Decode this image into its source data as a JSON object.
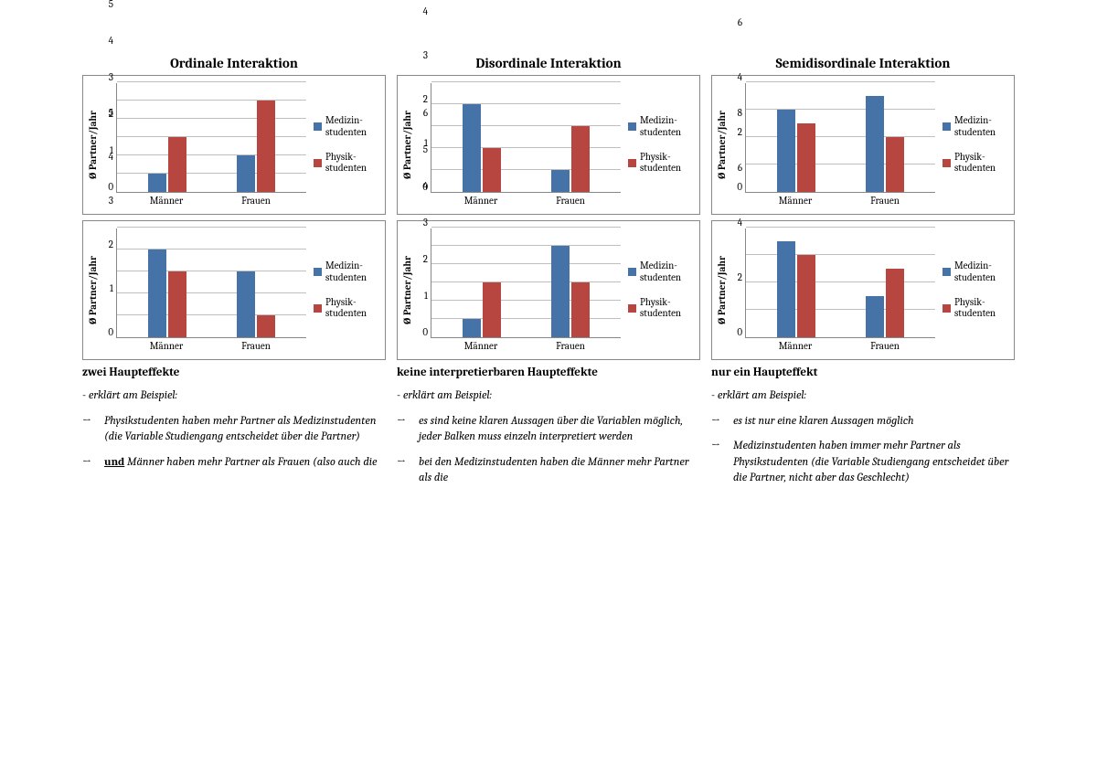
{
  "colors": {
    "series_a": "#4573a7",
    "series_b": "#b6463f",
    "grid": "#bfbfbf",
    "border": "#888888",
    "text": "#000000",
    "bg": "#ffffff"
  },
  "ylabel": "Ø Partner/Jahr",
  "categories": [
    "Männer",
    "Frauen"
  ],
  "legend": [
    {
      "label_l1": "Medizin-",
      "label_l2": "studenten",
      "color_key": "series_a"
    },
    {
      "label_l1": "Physik-",
      "label_l2": "studenten",
      "color_key": "series_b"
    }
  ],
  "columns": [
    {
      "title": "Ordinale Interaktion",
      "charts": [
        {
          "ymax": 6,
          "ystep": 1,
          "values": [
            [
              1,
              3
            ],
            [
              2,
              5
            ]
          ]
        },
        {
          "ymax": 5,
          "ystep": 1,
          "values": [
            [
              4,
              3
            ],
            [
              3,
              1
            ]
          ]
        }
      ],
      "subhead": "zwei Haupteffekte",
      "lead": "erklärt am Beispiel:",
      "points_html": [
        "Physikstudenten haben mehr Partner als Medizinstudenten (die Variable Studiengang entscheidet über die Partner)",
        "<span class=\"underline\">und</span> Männer haben mehr Partner als Frauen (also auch die"
      ]
    },
    {
      "title": "Disordinale Interaktion",
      "charts": [
        {
          "ymax": 5,
          "ystep": 1,
          "values": [
            [
              4,
              2
            ],
            [
              1,
              3
            ]
          ]
        },
        {
          "ymax": 6,
          "ystep": 1,
          "values": [
            [
              1,
              3
            ],
            [
              5,
              3
            ]
          ]
        }
      ],
      "subhead": "keine interpretierbaren Haupteffekte",
      "lead": "erklärt am Beispiel:",
      "points_html": [
        "es sind keine klaren Aussagen über die Variablen möglich, jeder Balken muss einzeln interpretiert werden",
        "bei den Medizinstudenten haben die Männer mehr Partner als die"
      ]
    },
    {
      "title": "Semidisordinale Interaktion",
      "charts": [
        {
          "ymax": 8,
          "ystep": 2,
          "values": [
            [
              6,
              5
            ],
            [
              7,
              4
            ]
          ]
        },
        {
          "ymax": 8,
          "ystep": 2,
          "values": [
            [
              7,
              6
            ],
            [
              3,
              5
            ]
          ]
        }
      ],
      "subhead": "nur ein Haupteffekt",
      "lead": "erklärt am Beispiel:",
      "points_html": [
        "es ist nur eine klaren Aussagen möglich",
        "Medizinstudenten haben immer mehr Partner als Physikstudenten (die Variable Studiengang entscheidet über die Partner, nicht aber das Geschlecht)"
      ]
    }
  ]
}
